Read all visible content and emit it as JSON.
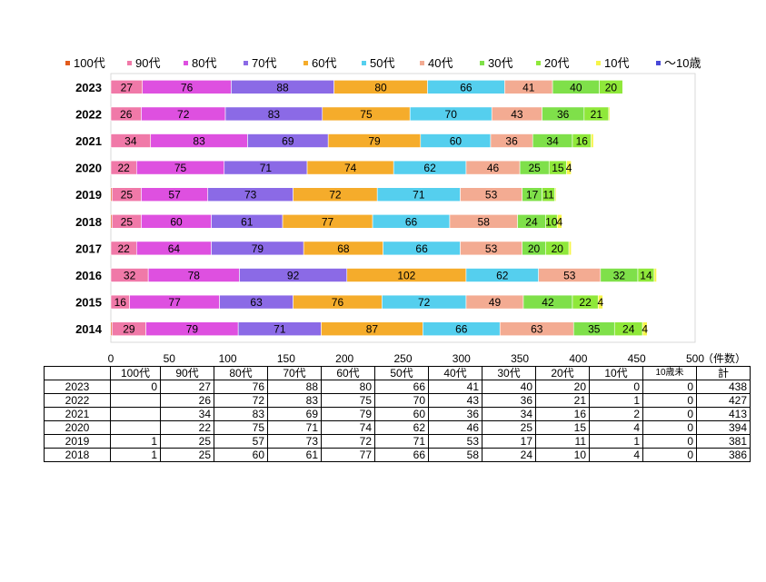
{
  "chart_data": {
    "type": "bar",
    "orientation": "horizontal",
    "stacked": true,
    "categories": [
      "2023",
      "2022",
      "2021",
      "2020",
      "2019",
      "2018",
      "2017",
      "2016",
      "2015",
      "2014"
    ],
    "series": [
      {
        "name": "100代",
        "color": "#e25b1c",
        "values": [
          0,
          0,
          0,
          0,
          1,
          1,
          0,
          0,
          0,
          1
        ]
      },
      {
        "name": "90代",
        "color": "#f079a8",
        "values": [
          27,
          26,
          34,
          22,
          25,
          25,
          22,
          32,
          16,
          29
        ]
      },
      {
        "name": "80代",
        "color": "#de50e0",
        "values": [
          76,
          72,
          83,
          75,
          57,
          60,
          64,
          78,
          77,
          79
        ]
      },
      {
        "name": "70代",
        "color": "#8b6ae6",
        "values": [
          88,
          83,
          69,
          71,
          73,
          61,
          79,
          92,
          63,
          71
        ]
      },
      {
        "name": "60代",
        "color": "#f5ac2b",
        "values": [
          80,
          75,
          79,
          74,
          72,
          77,
          68,
          102,
          76,
          87
        ]
      },
      {
        "name": "50代",
        "color": "#55cfee",
        "values": [
          66,
          70,
          60,
          62,
          71,
          66,
          66,
          62,
          72,
          66
        ]
      },
      {
        "name": "40代",
        "color": "#f3ab92",
        "values": [
          41,
          43,
          36,
          46,
          53,
          58,
          53,
          53,
          49,
          63
        ]
      },
      {
        "name": "30代",
        "color": "#7fe04a",
        "values": [
          40,
          36,
          34,
          25,
          17,
          24,
          20,
          32,
          42,
          35
        ]
      },
      {
        "name": "20代",
        "color": "#8fe83a",
        "values": [
          20,
          21,
          16,
          15,
          11,
          10,
          20,
          14,
          22,
          24
        ]
      },
      {
        "name": "10代",
        "color": "#f6f54a",
        "values": [
          0,
          1,
          2,
          4,
          1,
          4,
          2,
          2,
          4,
          4
        ]
      },
      {
        "name": "～10歳",
        "color": "#4848d8",
        "values": [
          0,
          0,
          0,
          0,
          0,
          0,
          0,
          0,
          0,
          0
        ]
      }
    ],
    "xlim": [
      0,
      500
    ],
    "xticks": [
      0,
      50,
      100,
      150,
      200,
      250,
      300,
      350,
      400,
      450,
      500
    ],
    "xunit": "（件数）",
    "grid": false,
    "legend": "top"
  },
  "table": {
    "headers": [
      "",
      "100代",
      "90代",
      "80代",
      "70代",
      "60代",
      "50代",
      "40代",
      "30代",
      "20代",
      "10代",
      "10歳未",
      "計"
    ],
    "rows": [
      [
        "2023",
        "0",
        "27",
        "76",
        "88",
        "80",
        "66",
        "41",
        "40",
        "20",
        "0",
        "0",
        "438"
      ],
      [
        "2022",
        "",
        "26",
        "72",
        "83",
        "75",
        "70",
        "43",
        "36",
        "21",
        "1",
        "0",
        "427"
      ],
      [
        "2021",
        "",
        "34",
        "83",
        "69",
        "79",
        "60",
        "36",
        "34",
        "16",
        "2",
        "0",
        "413"
      ],
      [
        "2020",
        "",
        "22",
        "75",
        "71",
        "74",
        "62",
        "46",
        "25",
        "15",
        "4",
        "0",
        "394"
      ],
      [
        "2019",
        "1",
        "25",
        "57",
        "73",
        "72",
        "71",
        "53",
        "17",
        "11",
        "1",
        "0",
        "381"
      ],
      [
        "2018",
        "1",
        "25",
        "60",
        "61",
        "77",
        "66",
        "58",
        "24",
        "10",
        "4",
        "0",
        "386"
      ]
    ]
  }
}
